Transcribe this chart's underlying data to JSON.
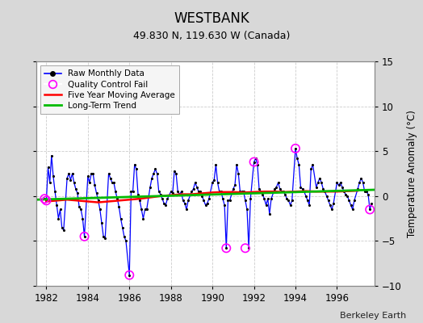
{
  "title": "WESTBANK",
  "subtitle": "49.830 N, 119.630 W (Canada)",
  "credit": "Berkeley Earth",
  "ylabel": "Temperature Anomaly (°C)",
  "ylim": [
    -10,
    15
  ],
  "xlim": [
    1981.5,
    1997.8
  ],
  "yticks": [
    -10,
    -5,
    0,
    5,
    10,
    15
  ],
  "xticks": [
    1982,
    1984,
    1986,
    1988,
    1990,
    1992,
    1994,
    1996
  ],
  "bg_color": "#d8d8d8",
  "plot_bg_color": "#ffffff",
  "raw_color": "#0000ff",
  "raw_dot_color": "#000000",
  "qc_color": "#ff00ff",
  "moving_avg_color": "#ff0000",
  "trend_color": "#00bb00",
  "raw_data_x": [
    1981.917,
    1982.0,
    1982.083,
    1982.167,
    1982.25,
    1982.333,
    1982.417,
    1982.5,
    1982.583,
    1982.667,
    1982.75,
    1982.833,
    1983.0,
    1983.083,
    1983.167,
    1983.25,
    1983.333,
    1983.417,
    1983.5,
    1983.583,
    1983.667,
    1983.75,
    1983.833,
    1984.0,
    1984.083,
    1984.167,
    1984.25,
    1984.333,
    1984.417,
    1984.5,
    1984.583,
    1984.667,
    1984.75,
    1984.833,
    1985.0,
    1985.083,
    1985.167,
    1985.25,
    1985.333,
    1985.417,
    1985.5,
    1985.583,
    1985.667,
    1985.75,
    1985.833,
    1986.0,
    1986.083,
    1986.167,
    1986.25,
    1986.333,
    1986.417,
    1986.5,
    1986.583,
    1986.667,
    1986.75,
    1986.833,
    1987.0,
    1987.083,
    1987.167,
    1987.25,
    1987.333,
    1987.417,
    1987.5,
    1987.583,
    1987.667,
    1987.75,
    1987.833,
    1988.0,
    1988.083,
    1988.167,
    1988.25,
    1988.333,
    1988.417,
    1988.5,
    1988.583,
    1988.667,
    1988.75,
    1988.833,
    1989.0,
    1989.083,
    1989.167,
    1989.25,
    1989.333,
    1989.417,
    1989.5,
    1989.583,
    1989.667,
    1989.75,
    1989.833,
    1990.0,
    1990.083,
    1990.167,
    1990.25,
    1990.333,
    1990.417,
    1990.5,
    1990.583,
    1990.667,
    1990.75,
    1990.833,
    1991.0,
    1991.083,
    1991.167,
    1991.25,
    1991.333,
    1991.417,
    1991.5,
    1991.583,
    1991.667,
    1991.75,
    1991.833,
    1992.0,
    1992.083,
    1992.167,
    1992.25,
    1992.333,
    1992.417,
    1992.5,
    1992.583,
    1992.667,
    1992.75,
    1992.833,
    1993.0,
    1993.083,
    1993.167,
    1993.25,
    1993.333,
    1993.417,
    1993.5,
    1993.583,
    1993.667,
    1993.75,
    1993.833,
    1994.0,
    1994.083,
    1994.167,
    1994.25,
    1994.333,
    1994.417,
    1994.5,
    1994.583,
    1994.667,
    1994.75,
    1994.833,
    1995.0,
    1995.083,
    1995.167,
    1995.25,
    1995.333,
    1995.417,
    1995.5,
    1995.583,
    1995.667,
    1995.75,
    1995.833,
    1996.0,
    1996.083,
    1996.167,
    1996.25,
    1996.333,
    1996.417,
    1996.5,
    1996.583,
    1996.667,
    1996.75,
    1996.833,
    1997.0,
    1997.083,
    1997.167,
    1997.25,
    1997.333,
    1997.417,
    1997.5,
    1997.583,
    1997.667
  ],
  "raw_data_y": [
    -0.3,
    -0.5,
    3.2,
    1.5,
    4.5,
    2.2,
    0.5,
    -1.0,
    -2.5,
    -1.5,
    -3.5,
    -3.8,
    2.0,
    2.5,
    1.8,
    2.5,
    1.5,
    0.8,
    0.3,
    -1.2,
    -1.5,
    -2.5,
    -4.5,
    2.2,
    1.5,
    2.5,
    2.5,
    1.2,
    0.3,
    -0.5,
    -1.5,
    -3.0,
    -4.5,
    -4.7,
    2.5,
    2.0,
    1.5,
    1.5,
    0.5,
    -0.3,
    -1.2,
    -2.5,
    -3.5,
    -4.5,
    -5.0,
    -8.8,
    0.5,
    0.5,
    3.5,
    3.0,
    0.2,
    -0.5,
    -1.5,
    -2.5,
    -1.5,
    -1.5,
    1.0,
    2.0,
    2.5,
    3.0,
    2.5,
    0.5,
    0.2,
    -0.3,
    -0.8,
    -1.0,
    -0.3,
    0.5,
    0.3,
    2.8,
    2.5,
    0.5,
    0.2,
    0.5,
    -0.5,
    -0.8,
    -1.5,
    -0.5,
    0.5,
    0.8,
    1.5,
    1.0,
    0.5,
    0.5,
    0.0,
    -0.5,
    -1.0,
    -0.8,
    -0.3,
    1.5,
    1.8,
    3.5,
    1.5,
    0.5,
    0.5,
    -0.3,
    -1.0,
    -5.8,
    -0.5,
    -0.5,
    0.8,
    1.2,
    3.5,
    2.5,
    0.5,
    0.5,
    0.5,
    -0.5,
    -1.5,
    -5.8,
    -0.3,
    3.8,
    4.2,
    3.5,
    0.8,
    0.5,
    0.2,
    -0.3,
    -1.0,
    -0.3,
    -2.0,
    -0.3,
    0.8,
    1.0,
    1.5,
    0.8,
    0.5,
    0.5,
    0.2,
    -0.3,
    -0.5,
    -1.0,
    -0.5,
    5.3,
    4.2,
    3.5,
    1.0,
    0.8,
    0.5,
    0.0,
    -0.5,
    -1.0,
    3.0,
    3.5,
    1.0,
    1.5,
    2.0,
    1.5,
    0.8,
    0.5,
    0.0,
    -0.5,
    -1.0,
    -1.5,
    -0.8,
    1.5,
    1.2,
    1.5,
    1.0,
    0.5,
    0.2,
    0.0,
    -0.5,
    -1.0,
    -1.5,
    -0.5,
    0.8,
    1.5,
    2.0,
    1.5,
    0.5,
    0.5,
    0.2,
    -1.5,
    -0.8
  ],
  "qc_fail_x": [
    1981.917,
    1982.0,
    1983.833,
    1986.0,
    1990.667,
    1991.583,
    1992.0,
    1994.0,
    1997.583
  ],
  "qc_fail_y": [
    -0.3,
    -0.5,
    -4.5,
    -8.8,
    -5.8,
    -5.8,
    3.8,
    5.3,
    -1.5
  ],
  "moving_avg_x": [
    1982.0,
    1982.5,
    1983.0,
    1983.5,
    1984.0,
    1984.5,
    1985.0,
    1985.5,
    1986.0,
    1986.5,
    1987.0,
    1987.5,
    1988.0,
    1988.5,
    1989.0,
    1989.5,
    1990.0,
    1990.5,
    1991.0,
    1991.5,
    1992.0,
    1992.5,
    1993.0,
    1993.5,
    1994.0,
    1994.5,
    1995.0,
    1995.5,
    1996.0,
    1996.5,
    1997.0
  ],
  "moving_avg_y": [
    -0.6,
    -0.5,
    -0.4,
    -0.5,
    -0.6,
    -0.7,
    -0.6,
    -0.5,
    -0.4,
    -0.3,
    -0.15,
    0.0,
    0.1,
    0.2,
    0.2,
    0.3,
    0.4,
    0.45,
    0.45,
    0.4,
    0.45,
    0.5,
    0.5,
    0.45,
    0.5,
    0.55,
    0.5,
    0.5,
    0.5,
    0.55,
    0.6
  ],
  "trend_x": [
    1981.5,
    1997.8
  ],
  "trend_y": [
    -0.4,
    0.7
  ]
}
